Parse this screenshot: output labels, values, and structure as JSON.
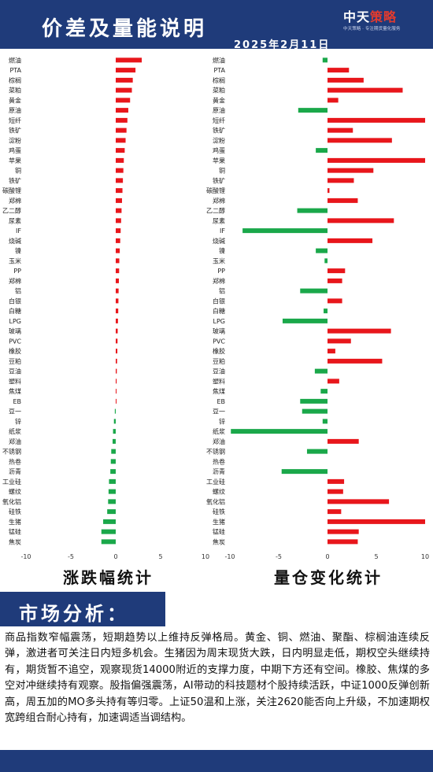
{
  "header": {
    "title": "价差及量能说明",
    "date": "2025年2月11日",
    "logo_main": "中天",
    "logo_accent": "策略",
    "logo_sub": "中天策略 · 专注期货量化服务"
  },
  "colors": {
    "up": "#e8161b",
    "down": "#1aa84a",
    "navy": "#1f3b7a"
  },
  "panel_titles": {
    "left": "涨跌幅统计",
    "right": "量仓变化统计"
  },
  "chart_data": [
    {
      "type": "bar",
      "orientation": "horizontal",
      "title": "涨跌幅统计",
      "xlim": [
        -10,
        10
      ],
      "xticks": [
        -10,
        -5,
        0,
        5,
        10
      ],
      "grid": false,
      "categories": [
        "燃油",
        "PTA",
        "棕榈",
        "菜粕",
        "黄金",
        "原油",
        "短纤",
        "铁矿",
        "淀粉",
        "鸡蛋",
        "苹果",
        "铜",
        "铁矿",
        "碳酸锂",
        "郑棉",
        "乙二醇",
        "尿素",
        "IF",
        "烧碱",
        "镍",
        "玉米",
        "PP",
        "郑棉",
        "铝",
        "白银",
        "白糖",
        "LPG",
        "玻璃",
        "PVC",
        "橡胶",
        "豆粕",
        "豆油",
        "塑料",
        "焦煤",
        "EB",
        "豆一",
        "锌",
        "纸浆",
        "郑油",
        "不锈钢",
        "热卷",
        "沥青",
        "工业硅",
        "螺纹",
        "氧化铝",
        "硅铁",
        "生猪",
        "锰硅",
        "焦炭"
      ],
      "values": [
        2.9,
        2.2,
        1.9,
        1.8,
        1.6,
        1.4,
        1.3,
        1.2,
        1.1,
        1.0,
        0.9,
        0.85,
        0.8,
        0.75,
        0.7,
        0.65,
        0.6,
        0.55,
        0.5,
        0.45,
        0.4,
        0.38,
        0.35,
        0.32,
        0.3,
        0.28,
        0.25,
        0.22,
        0.2,
        0.18,
        0.15,
        0.12,
        0.1,
        0.08,
        0.05,
        -0.1,
        -0.2,
        -0.3,
        -0.35,
        -0.5,
        -0.55,
        -0.6,
        -0.75,
        -0.8,
        -0.85,
        -0.95,
        -1.4,
        -1.6,
        -1.6
      ]
    },
    {
      "type": "bar",
      "orientation": "horizontal",
      "title": "量仓变化统计",
      "xlim": [
        -10,
        10
      ],
      "xticks": [
        -10,
        -5,
        0,
        5,
        10
      ],
      "grid": false,
      "categories": [
        "燃油",
        "PTA",
        "棕榈",
        "菜粕",
        "黄金",
        "原油",
        "短纤",
        "铁矿",
        "淀粉",
        "鸡蛋",
        "苹果",
        "铜",
        "铁矿",
        "碳酸锂",
        "郑棉",
        "乙二醇",
        "尿素",
        "IF",
        "烧碱",
        "镍",
        "玉米",
        "PP",
        "郑棉",
        "铝",
        "白银",
        "白糖",
        "LPG",
        "玻璃",
        "PVC",
        "橡胶",
        "豆粕",
        "豆油",
        "塑料",
        "焦煤",
        "EB",
        "豆一",
        "锌",
        "纸浆",
        "郑油",
        "不锈钢",
        "热卷",
        "沥青",
        "工业硅",
        "螺纹",
        "氧化铝",
        "硅铁",
        "生猪",
        "锰硅",
        "焦炭"
      ],
      "values": [
        -0.5,
        2.2,
        3.7,
        7.7,
        1.1,
        -3.0,
        10.0,
        2.6,
        6.6,
        -1.2,
        10.0,
        4.7,
        2.7,
        0.2,
        3.1,
        -3.1,
        6.8,
        -8.7,
        4.6,
        -1.2,
        -0.3,
        1.8,
        1.5,
        -2.8,
        1.5,
        -0.4,
        -4.6,
        6.5,
        2.4,
        0.8,
        5.6,
        -1.3,
        1.2,
        -0.7,
        -2.8,
        -2.6,
        -0.5,
        -9.9,
        3.2,
        -2.1,
        0,
        -4.7,
        1.7,
        1.6,
        6.3,
        1.4,
        10.0,
        3.2,
        3.1
      ]
    }
  ],
  "market": {
    "title": "市场分析：",
    "text": "商品指数窄幅震荡，短期趋势以上维持反弹格局。黄金、铜、燃油、聚酯、棕榈油连续反弹，激进者可关注日内短多机会。生猪因为周末现货大跌，日内明显走低，期权空头继续持有，期货暂不追空，观察现货14000附近的支撑力度，中期下方还有空间。橡胶、焦煤的多空对冲继续持有观察。股指偏强震荡，AI带动的科技题材个股持续活跃，中证1000反弹创新高，周五加的MO多头持有等归零。上证50温和上涨，关注2620能否向上升级，不加速期权宽跨组合耐心持有，加速调适当调结构。"
  }
}
